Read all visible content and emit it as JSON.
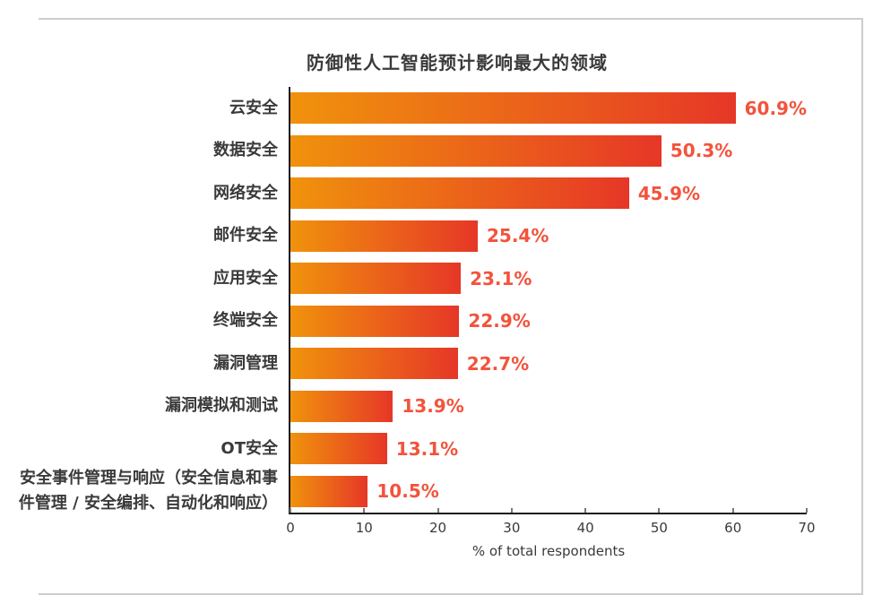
{
  "page": {
    "background": "#ffffff",
    "frame_color": "#cccccc"
  },
  "chart_data": {
    "type": "bar",
    "orientation": "horizontal",
    "title": "防御性人工智能预计影响最大的领域",
    "xlabel": "% of total respondents",
    "xlim": [
      0,
      70
    ],
    "xticks": [
      "0",
      "10",
      "20",
      "30",
      "40",
      "50",
      "60",
      "70"
    ],
    "grid": false,
    "categories": [
      "云安全",
      "数据安全",
      "网络安全",
      "邮件安全",
      "应用安全",
      "终端安全",
      "漏洞管理",
      "漏洞模拟和测试",
      "OT安全",
      "安全事件管理与响应（安全信息和事件管理 / 安全编排、自动化和响应）"
    ],
    "values": [
      60.9,
      50.3,
      45.9,
      25.4,
      23.1,
      22.9,
      22.7,
      13.9,
      13.1,
      10.5
    ],
    "value_labels": [
      "60.9%",
      "50.3%",
      "45.9%",
      "25.4%",
      "23.1%",
      "22.9%",
      "22.7%",
      "13.9%",
      "13.1%",
      "10.5%"
    ],
    "colors": {
      "bar_gradient_start": "#F0920C",
      "bar_gradient_end": "#E63727",
      "value_label": "#F3533C",
      "axis_line": "#1a1a1a",
      "tick": "#777777",
      "text": "#3a3a3a"
    }
  }
}
